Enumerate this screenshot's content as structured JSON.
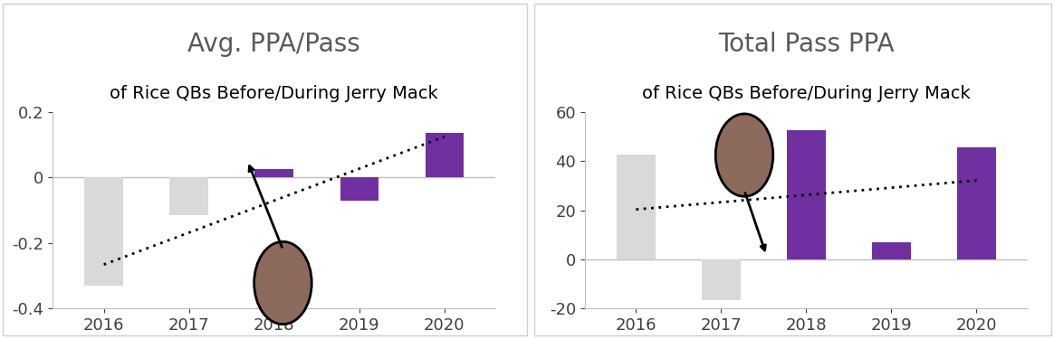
{
  "chart_data": [
    {
      "type": "bar",
      "title": "Avg. PPA/Pass",
      "subtitle": "of Rice QBs Before/During Jerry Mack",
      "categories": [
        "2016",
        "2017",
        "2018",
        "2019",
        "2020"
      ],
      "values": [
        -0.33,
        -0.115,
        0.025,
        -0.07,
        0.135
      ],
      "colors": [
        "#d9d9d9",
        "#d9d9d9",
        "#7030a0",
        "#7030a0",
        "#7030a0"
      ],
      "ylim": [
        -0.4,
        0.2
      ],
      "yticks": [
        -0.4,
        -0.2,
        0,
        0.2
      ],
      "grid": false
    },
    {
      "type": "bar",
      "title": "Total Pass PPA",
      "subtitle": "of Rice QBs Before/During Jerry Mack",
      "categories": [
        "2016",
        "2017",
        "2018",
        "2019",
        "2020"
      ],
      "values": [
        42.5,
        -16.5,
        52.5,
        7,
        45.5
      ],
      "colors": [
        "#d9d9d9",
        "#d9d9d9",
        "#7030a0",
        "#7030a0",
        "#7030a0"
      ],
      "ylim": [
        -20,
        60
      ],
      "yticks": [
        -20,
        0,
        20,
        40,
        60
      ],
      "grid": false
    }
  ]
}
